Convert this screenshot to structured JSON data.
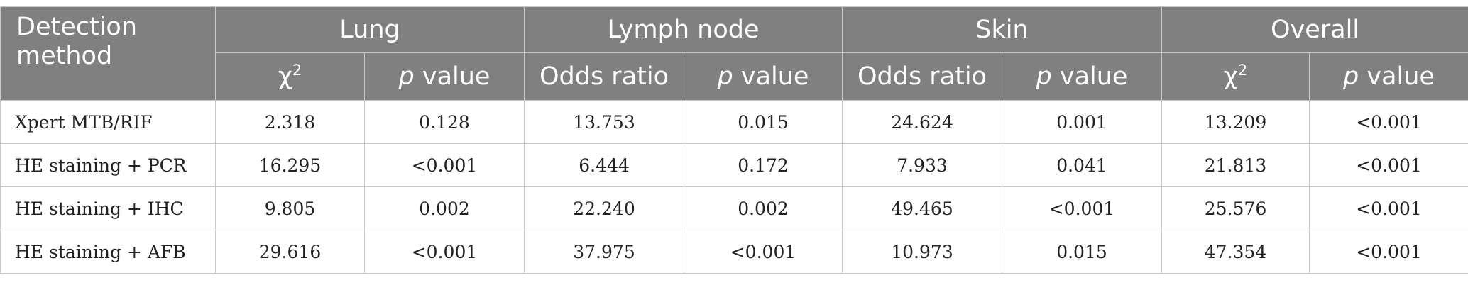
{
  "table": {
    "header": {
      "method_label": "Detection method",
      "groups": [
        "Lung",
        "Lymph node",
        "Skin",
        "Overall"
      ],
      "sub": {
        "lung_stat_symbol": "χ",
        "lung_stat_sup": "2",
        "p_italic": "p",
        "p_rest": " value",
        "odds_ratio": "Odds ratio",
        "overall_stat_symbol": "χ",
        "overall_stat_sup": "2"
      }
    },
    "rows": [
      {
        "method": "Xpert MTB/RIF",
        "values": [
          "2.318",
          "0.128",
          "13.753",
          "0.015",
          "24.624",
          "0.001",
          "13.209",
          "<0.001"
        ]
      },
      {
        "method": "HE staining + PCR",
        "values": [
          "16.295",
          "<0.001",
          "6.444",
          "0.172",
          "7.933",
          "0.041",
          "21.813",
          "<0.001"
        ]
      },
      {
        "method": "HE staining + IHC",
        "values": [
          "9.805",
          "0.002",
          "22.240",
          "0.002",
          "49.465",
          "<0.001",
          "25.576",
          "<0.001"
        ]
      },
      {
        "method": "HE staining + AFB",
        "values": [
          "29.616",
          "<0.001",
          "37.975",
          "<0.001",
          "10.973",
          "0.015",
          "47.354",
          "<0.001"
        ]
      }
    ]
  }
}
